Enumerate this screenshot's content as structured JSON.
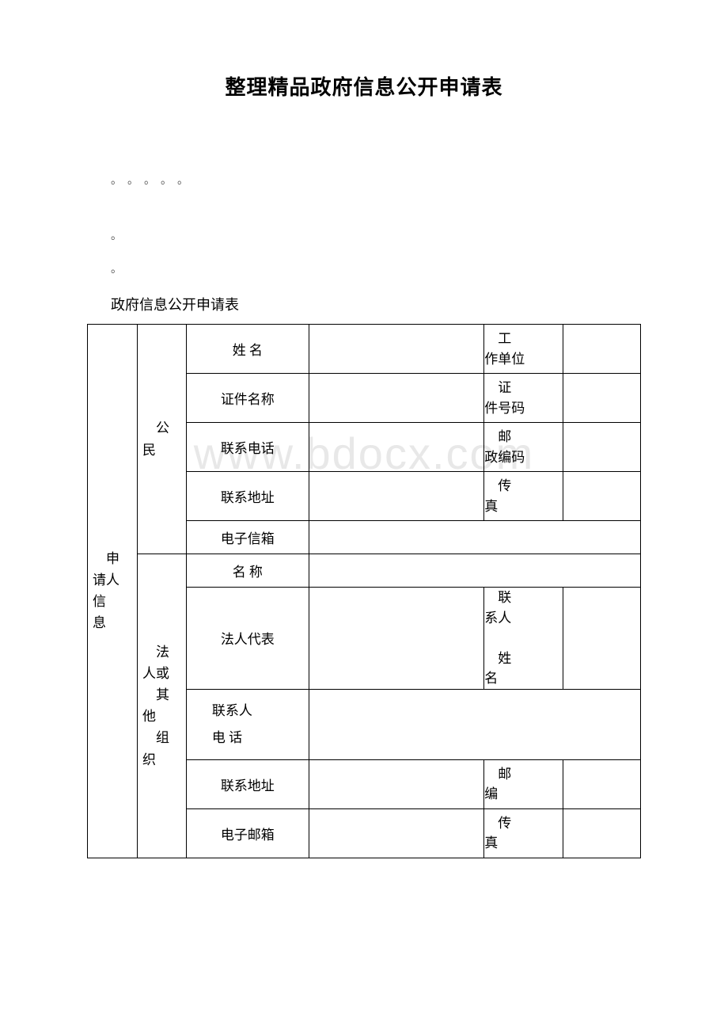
{
  "title": "整理精品政府信息公开申请表",
  "dots5": "。。。。。",
  "dot1": "。",
  "subtitle": "政府信息公开申请表",
  "watermark": "www.bdocx.com",
  "table": {
    "applicant_header": "申请人信息",
    "citizen": {
      "header": "公民",
      "rows": [
        {
          "label1": "姓 名",
          "label2": "工作单位"
        },
        {
          "label1": "证件名称",
          "label2": "证件号码"
        },
        {
          "label1": "联系电话",
          "label2": "邮政编码"
        },
        {
          "label1": "联系地址",
          "label2": "传真"
        },
        {
          "label1": "电子信箱"
        }
      ]
    },
    "legal": {
      "header": "法人或\n其他组织",
      "header_lines": [
        "法人或",
        "其",
        "他",
        "组",
        "织"
      ],
      "rows": [
        {
          "label1": "名 称"
        },
        {
          "label1": "法人代表",
          "label2": "联系人\n姓名"
        },
        {
          "label1": "联系人\n电 话"
        },
        {
          "label1": "联系地址",
          "label2": "邮编"
        },
        {
          "label1": "电子邮箱",
          "label2": "传真"
        }
      ]
    }
  }
}
